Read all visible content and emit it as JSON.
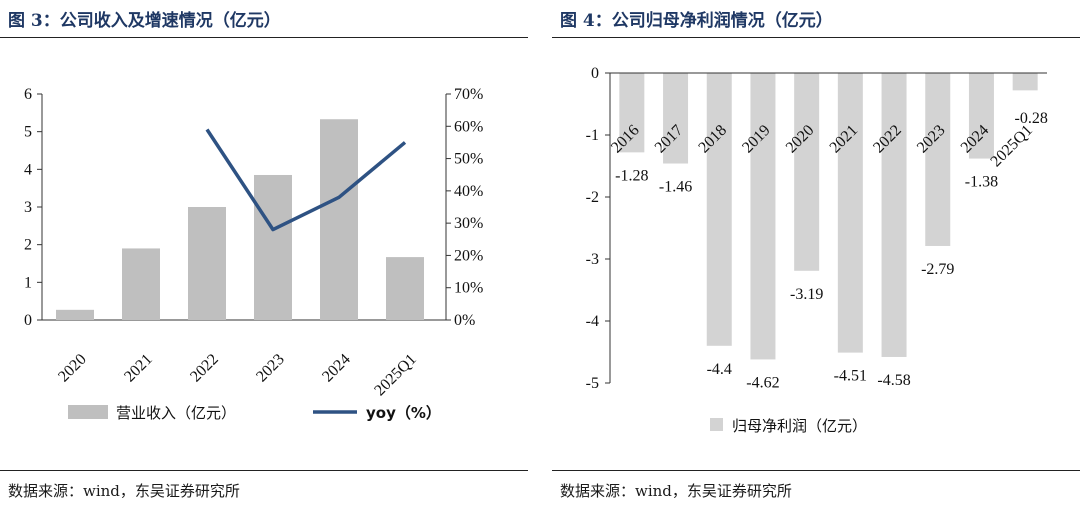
{
  "left": {
    "title": "图 3：公司收入及增速情况（亿元）",
    "source": "数据来源：wind，东吴证券研究所",
    "chart_data": {
      "type": "bar+line",
      "title": "公司收入及增速情况（亿元）",
      "categories": [
        "2020",
        "2021",
        "2022",
        "2023",
        "2024",
        "2025Q1"
      ],
      "series": [
        {
          "name": "营业收入（亿元）",
          "type": "bar",
          "axis": "left",
          "color": "#bfbfbf",
          "values": [
            0.27,
            1.9,
            3.0,
            3.85,
            5.33,
            1.67
          ]
        },
        {
          "name": "yoy（%）",
          "type": "line",
          "axis": "right",
          "color": "#2e5283",
          "values": [
            null,
            null,
            59,
            28,
            38,
            55
          ]
        }
      ],
      "ylim": [
        0,
        6
      ],
      "yticks": [
        "0",
        "1",
        "2",
        "3",
        "4",
        "5",
        "6"
      ],
      "y2lim": [
        0,
        70
      ],
      "y2ticks": [
        "0%",
        "10%",
        "20%",
        "30%",
        "40%",
        "50%",
        "60%",
        "70%"
      ],
      "legend": [
        "营业收入（亿元）",
        "yoy（%）"
      ]
    }
  },
  "right": {
    "title": "图 4：公司归母净利润情况（亿元）",
    "source": "数据来源：wind，东吴证券研究所",
    "chart_data": {
      "type": "bar",
      "title": "公司归母净利润情况（亿元）",
      "categories": [
        "2016",
        "2017",
        "2018",
        "2019",
        "2020",
        "2021",
        "2022",
        "2023",
        "2024",
        "2025Q1"
      ],
      "values": [
        -1.28,
        -1.46,
        -4.4,
        -4.62,
        -3.19,
        -4.51,
        -4.58,
        -2.79,
        -1.38,
        -0.28
      ],
      "labels": [
        "-1.28",
        "-1.46",
        "-4.4",
        "-4.62",
        "-3.19",
        "-4.51",
        "-4.58",
        "-2.79",
        "-1.38",
        "-0.28"
      ],
      "color": "#d3d3d3",
      "ylim": [
        -5,
        0
      ],
      "yticks": [
        "0",
        "-1",
        "-2",
        "-3",
        "-4",
        "-5"
      ],
      "legend": [
        "归母净利润（亿元）"
      ]
    }
  }
}
